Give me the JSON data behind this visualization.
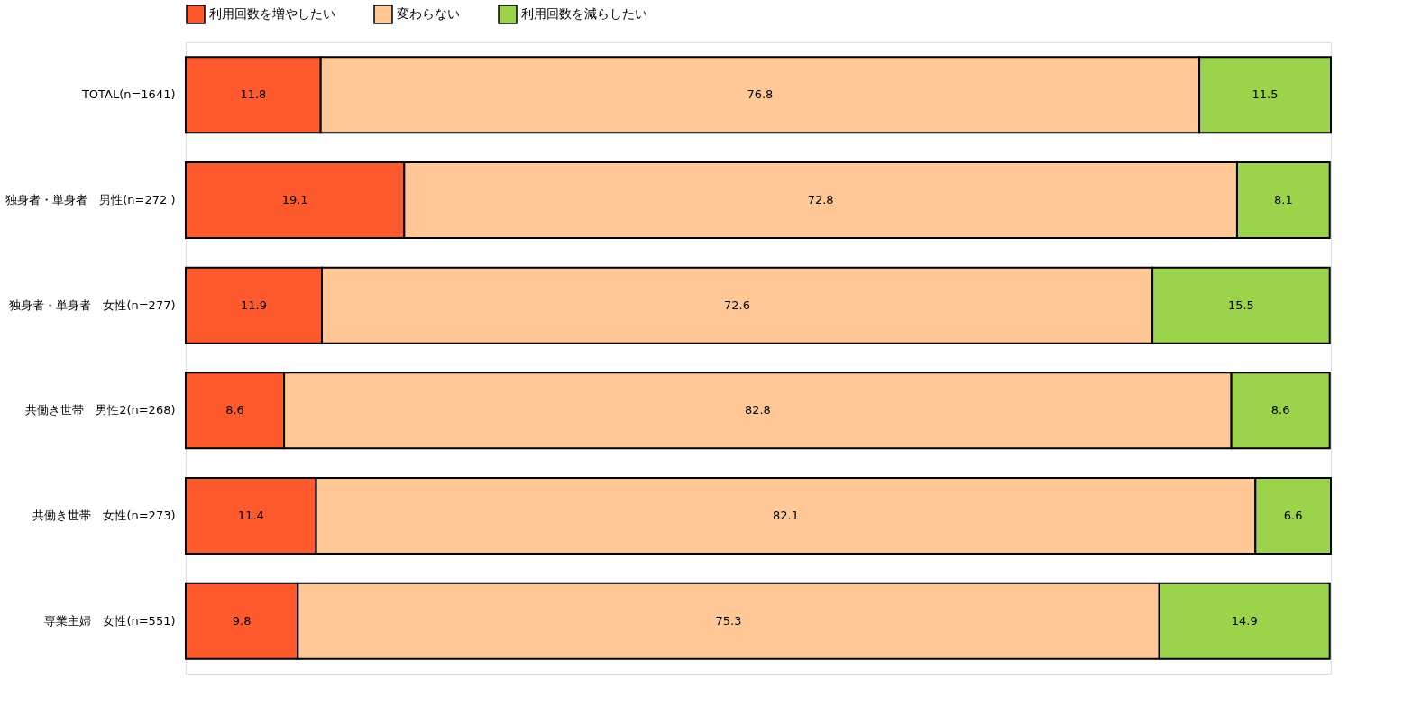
{
  "chart_data": {
    "type": "bar",
    "orientation": "horizontal",
    "stacked": true,
    "data_labels": true,
    "legend": "top",
    "grid": false,
    "tick_labels": "y",
    "categories": [
      "TOTAL(n=1641)",
      "独身者・単身者　男性(n=272 )",
      "独身者・単身者　女性(n=277)",
      "共働き世帯　男性2(n=268)",
      "共働き世帯　女性(n=273)",
      "専業主婦　女性(n=551)"
    ],
    "series": [
      {
        "name": "利用回数を増やしたい",
        "color": "#ff5a2e",
        "values": [
          11.8,
          19.1,
          11.9,
          8.6,
          11.4,
          9.8
        ]
      },
      {
        "name": "変わらない",
        "color": "#ffc896",
        "values": [
          76.8,
          72.8,
          72.6,
          82.8,
          82.1,
          75.3
        ]
      },
      {
        "name": "利用回数を減らしたい",
        "color": "#9bd34a",
        "values": [
          11.5,
          8.1,
          15.5,
          8.6,
          6.6,
          14.9
        ]
      }
    ]
  }
}
